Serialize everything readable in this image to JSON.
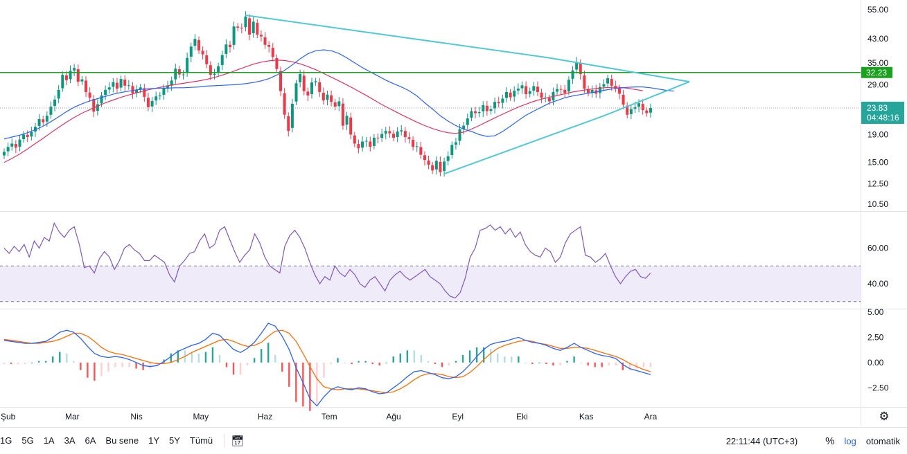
{
  "chart_data": [
    {
      "type": "candlestick",
      "scale": "log",
      "yticks": [
        "55.00",
        "43.00",
        "35.00",
        "29.00",
        "23.00",
        "19.00",
        "15.00",
        "12.50",
        "10.50"
      ],
      "ytick_values": [
        55,
        43,
        35,
        29,
        23,
        19,
        15,
        12.5,
        10.5
      ],
      "ylim": [
        10.2,
        57
      ],
      "xticks": [
        "Şub",
        "Mar",
        "Nis",
        "May",
        "Haz",
        "Tem",
        "Ağu",
        "Eyl",
        "Eki",
        "Kas",
        "Ara"
      ],
      "xtick_weeks": [
        1,
        17.5,
        34,
        50.5,
        67,
        83.5,
        100,
        116.5,
        133,
        149.5,
        166
      ],
      "x_range_weeks": [
        0,
        186
      ],
      "closes": [
        16.4,
        17.1,
        17.6,
        17.0,
        18.2,
        19.0,
        18.6,
        19.4,
        20.3,
        21.7,
        21.1,
        22.3,
        24.1,
        25.6,
        27.8,
        31.6,
        30.2,
        32.7,
        33.5,
        29.8,
        30.4,
        27.3,
        26.0,
        23.1,
        24.6,
        26.5,
        27.8,
        28.4,
        29.7,
        28.1,
        30.5,
        28.8,
        28.9,
        27.0,
        27.8,
        28.4,
        26.2,
        24.0,
        25.3,
        26.3,
        26.5,
        28.1,
        28.7,
        30.1,
        33.3,
        31.7,
        31.7,
        36.5,
        40.2,
        42.9,
        38.9,
        37.6,
        34.6,
        31.6,
        31.9,
        34.0,
        37.4,
        40.9,
        40.0,
        47.7,
        47.2,
        46.9,
        51.9,
        44.5,
        49.7,
        44.5,
        43.8,
        40.8,
        40.1,
        36.8,
        33.2,
        27.5,
        22.5,
        19.6,
        24.7,
        29.4,
        31.8,
        27.5,
        26.5,
        29.6,
        29.9,
        27.3,
        25.4,
        26.7,
        25.1,
        24.1,
        25.2,
        20.5,
        22.3,
        19.0,
        17.6,
        16.9,
        17.9,
        18.0,
        17.1,
        18.5,
        18.4,
        19.1,
        19.6,
        19.2,
        18.5,
        19.5,
        19.7,
        18.6,
        18.3,
        17.1,
        17.2,
        16.0,
        15.3,
        14.7,
        14.0,
        15.2,
        13.8,
        15.1,
        15.8,
        17.4,
        17.8,
        19.9,
        20.5,
        21.8,
        23.2,
        22.8,
        23.0,
        24.4,
        23.2,
        23.6,
        25.1,
        24.8,
        25.8,
        27.3,
        26.1,
        27.6,
        28.1,
        28.9,
        26.8,
        27.5,
        28.7,
        27.3,
        26.0,
        26.0,
        25.2,
        27.3,
        28.0,
        27.9,
        27.1,
        30.3,
        32.8,
        35.2,
        31.8,
        28.1,
        27.1,
        27.8,
        26.9,
        28.5,
        29.2,
        30.7,
        28.8,
        28.2,
        26.9,
        24.5,
        22.5,
        23.6,
        24.0,
        24.8,
        23.4,
        22.8,
        23.83
      ],
      "ma_fast": {
        "color": "#2962ff",
        "values": [
          18.3,
          18.6,
          18.9,
          19.3,
          19.8,
          20.4,
          21.2,
          22.1,
          23.1,
          24.0,
          24.7,
          25.3,
          25.8,
          26.3,
          26.8,
          27.2,
          27.5,
          27.8,
          28.0,
          28.1,
          28.2,
          28.2,
          28.3,
          28.3,
          28.4,
          28.5,
          28.7,
          28.8,
          28.9,
          29.0,
          29.1,
          29.3,
          29.6,
          30.0,
          30.6,
          31.5,
          32.8,
          34.4,
          36.2,
          37.8,
          38.8,
          39.1,
          38.8,
          37.9,
          36.5,
          35.0,
          33.6,
          32.4,
          31.3,
          30.2,
          29.3,
          28.5,
          27.6,
          26.4,
          24.9,
          23.6,
          22.3,
          21.3,
          20.5,
          19.9,
          19.5,
          19.0,
          18.7,
          18.8,
          19.5,
          20.4,
          21.4,
          22.4,
          23.2,
          24.0,
          24.8,
          25.4,
          26.0,
          26.4,
          26.7,
          27.0,
          27.3,
          27.7,
          28.0,
          28.2,
          28.4,
          28.5,
          28.5,
          28.3,
          28.0,
          27.7,
          27.5
        ]
      },
      "ma_slow": {
        "color": "#e0325f",
        "values": [
          15.0,
          15.5,
          16.1,
          16.8,
          17.6,
          18.4,
          19.3,
          20.2,
          21.1,
          22.0,
          22.8,
          23.5,
          24.2,
          24.9,
          25.5,
          26.1,
          26.6,
          27.1,
          27.6,
          28.0,
          28.4,
          28.8,
          29.1,
          29.4,
          29.7,
          30.0,
          30.4,
          30.9,
          31.5,
          32.2,
          33.0,
          33.8,
          34.6,
          35.2,
          35.6,
          35.8,
          35.7,
          35.3,
          34.7,
          33.9,
          33.0,
          32.0,
          31.0,
          30.0,
          29.0,
          28.0,
          27.0,
          26.0,
          25.0,
          24.1,
          23.3,
          22.5,
          21.8,
          21.1,
          20.5,
          20.0,
          19.6,
          19.3,
          19.2,
          19.4,
          19.9,
          20.5,
          21.2,
          21.9,
          22.6,
          23.3,
          24.0,
          24.6,
          25.2,
          25.7,
          26.1,
          26.5,
          26.9,
          27.3,
          27.6,
          27.9,
          28.1,
          28.3,
          28.4,
          28.4,
          28.2,
          27.9,
          27.6
        ]
      },
      "horizontal_level": {
        "value": 32.23,
        "label": "32.23",
        "color": "#089981"
      },
      "price_label": {
        "value": 23.83,
        "label": "23.83",
        "timer": "04:48:16",
        "color": "#26a69a"
      },
      "triangle": {
        "color": "#50c8d8",
        "upper": [
          [
            62,
            52.5
          ],
          [
            140,
            36.5
          ],
          [
            176,
            29.8
          ]
        ],
        "lower": [
          [
            113,
            13.6
          ],
          [
            154,
            22.3
          ],
          [
            176,
            29.8
          ]
        ]
      },
      "up_color": "#089981",
      "down_color": "#f23645"
    },
    {
      "type": "line",
      "name": "RSI",
      "yticks": [
        "60.00",
        "40.00"
      ],
      "ytick_values": [
        60,
        40
      ],
      "ylim": [
        26,
        80
      ],
      "band": [
        50,
        30
      ],
      "line_color": "#7e57c2",
      "values": [
        60,
        57,
        61,
        58,
        62,
        55,
        64,
        60,
        66,
        64,
        74,
        69,
        66,
        70,
        72,
        62,
        49,
        50,
        46,
        54,
        58,
        55,
        48,
        53,
        60,
        62,
        59,
        57,
        53,
        53,
        56,
        54,
        52,
        45,
        41,
        50,
        53,
        57,
        58,
        64,
        68,
        60,
        62,
        70,
        72,
        65,
        58,
        52,
        56,
        59,
        68,
        63,
        55,
        50,
        48,
        46,
        61,
        67,
        70,
        66,
        60,
        52,
        45,
        40,
        44,
        42,
        50,
        46,
        44,
        48,
        45,
        40,
        38,
        42,
        44,
        40,
        36,
        42,
        45,
        47,
        44,
        42,
        44,
        46,
        48,
        44,
        42,
        40,
        36,
        33,
        32,
        35,
        43,
        55,
        60,
        70,
        71,
        73,
        70,
        72,
        68,
        71,
        66,
        69,
        62,
        58,
        56,
        55,
        60,
        58,
        52,
        55,
        63,
        68,
        70,
        72,
        56,
        55,
        52,
        54,
        57,
        50,
        44,
        40,
        44,
        47,
        48,
        44,
        43,
        46
      ],
      "x_start_week": 0
    },
    {
      "type": "bar",
      "name": "MACD",
      "yticks": [
        "5.00",
        "2.50",
        "0.00",
        "−2.50"
      ],
      "ytick_values": [
        5,
        2.5,
        0,
        -2.5
      ],
      "ylim": [
        -4.4,
        5.2
      ],
      "macd_color": "#2962ff",
      "signal_color": "#ff6d00",
      "macd": [
        2.2,
        2.1,
        2.0,
        1.9,
        1.9,
        2.0,
        2.1,
        2.5,
        3.0,
        3.2,
        3.0,
        2.4,
        1.6,
        0.9,
        0.6,
        0.5,
        0.6,
        0.5,
        0.3,
        0.0,
        -0.3,
        -0.4,
        -0.3,
        0.1,
        0.6,
        1.1,
        1.4,
        1.7,
        1.9,
        2.3,
        2.9,
        2.7,
        2.0,
        1.3,
        1.0,
        1.4,
        2.0,
        2.9,
        3.9,
        3.6,
        2.6,
        1.3,
        -0.5,
        -2.0,
        -3.6,
        -4.3,
        -3.4,
        -2.7,
        -2.4,
        -2.6,
        -2.7,
        -2.5,
        -2.6,
        -2.9,
        -3.1,
        -3.0,
        -2.5,
        -2.0,
        -1.4,
        -0.9,
        -0.8,
        -1.0,
        -1.2,
        -1.5,
        -1.6,
        -1.4,
        -0.9,
        -0.2,
        0.6,
        1.3,
        1.8,
        2.0,
        2.1,
        2.3,
        2.5,
        2.2,
        2.0,
        1.9,
        1.7,
        1.4,
        1.2,
        1.5,
        1.9,
        1.5,
        1.2,
        0.9,
        0.7,
        0.6,
        0.4,
        -0.2,
        -0.6,
        -0.8,
        -1.0,
        -1.2
      ],
      "signal": [
        2.3,
        2.2,
        2.1,
        2.0,
        1.9,
        1.9,
        2.0,
        2.1,
        2.3,
        2.6,
        2.9,
        2.9,
        2.6,
        2.1,
        1.5,
        1.1,
        0.9,
        0.8,
        0.6,
        0.4,
        0.2,
        0.0,
        -0.1,
        -0.1,
        0.0,
        0.3,
        0.6,
        1.0,
        1.3,
        1.6,
        1.9,
        2.2,
        2.3,
        2.1,
        1.8,
        1.6,
        1.7,
        2.0,
        2.6,
        3.1,
        3.2,
        2.9,
        2.1,
        0.9,
        -0.4,
        -1.6,
        -2.4,
        -2.6,
        -2.7,
        -2.6,
        -2.6,
        -2.6,
        -2.7,
        -2.8,
        -2.9,
        -3.0,
        -2.9,
        -2.6,
        -2.2,
        -1.7,
        -1.3,
        -1.1,
        -1.1,
        -1.2,
        -1.4,
        -1.5,
        -1.4,
        -1.0,
        -0.4,
        0.3,
        0.9,
        1.4,
        1.7,
        1.9,
        2.1,
        2.2,
        2.1,
        1.9,
        1.8,
        1.6,
        1.4,
        1.4,
        1.5,
        1.5,
        1.4,
        1.2,
        1.0,
        0.8,
        0.6,
        0.3,
        -0.1,
        -0.4,
        -0.7,
        -0.9
      ],
      "hist_pos_strong": "#26a69a",
      "hist_pos_weak": "#b2dfdb",
      "hist_neg_strong": "#ff5252",
      "hist_neg_weak": "#ffcdd2"
    }
  ],
  "bottom_bar": {
    "ranges": [
      "1G",
      "5G",
      "1A",
      "3A",
      "6A",
      "Bu sene",
      "1Y",
      "5Y",
      "Tümü"
    ],
    "time": "22:11:44 (UTC+3)",
    "percent": "%",
    "log": "log",
    "auto": "otomatik"
  },
  "icons": {
    "settings": "gear-icon",
    "date_range": "calendar-range-icon"
  }
}
